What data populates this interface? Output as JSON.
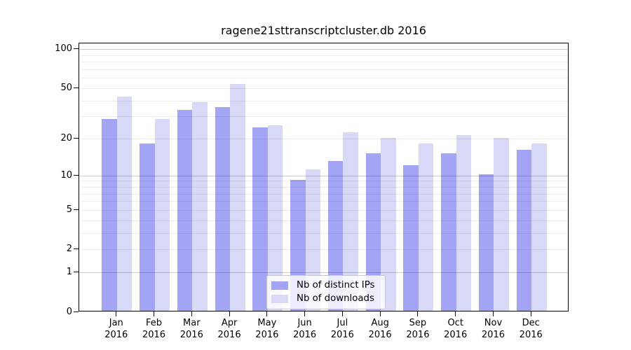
{
  "chart_data": {
    "type": "bar",
    "title": "ragene21sttranscriptcluster.db 2016",
    "categories": [
      "Jan",
      "Feb",
      "Mar",
      "Apr",
      "May",
      "Jun",
      "Jul",
      "Aug",
      "Sep",
      "Oct",
      "Nov",
      "Dec"
    ],
    "x_tick_second_line": "2016",
    "series": [
      {
        "name": "Nb of distinct IPs",
        "color": "#a4a4f4",
        "values": [
          28,
          18,
          33,
          35,
          24,
          9,
          13,
          15,
          12,
          15,
          10,
          16
        ]
      },
      {
        "name": "Nb of downloads",
        "color": "#d8d8f7",
        "values": [
          42,
          28,
          38,
          53,
          25,
          11,
          22,
          20,
          18,
          21,
          20,
          18
        ]
      }
    ],
    "y_axis": {
      "scale": "log1p",
      "tick_labels": [
        "100",
        "50",
        "20",
        "10",
        "5",
        "2",
        "1",
        "0"
      ],
      "tick_values": [
        100,
        50,
        20,
        10,
        5,
        2,
        1,
        0
      ],
      "gridlines_major": [
        1,
        10,
        100
      ],
      "gridlines_minor": [
        2,
        3,
        4,
        5,
        6,
        7,
        8,
        9,
        20,
        30,
        40,
        50,
        60,
        70,
        80,
        90
      ],
      "ylim": [
        0,
        112
      ]
    },
    "xlabel": "",
    "ylabel": "",
    "legend_position": "lower center",
    "grid": "on"
  }
}
